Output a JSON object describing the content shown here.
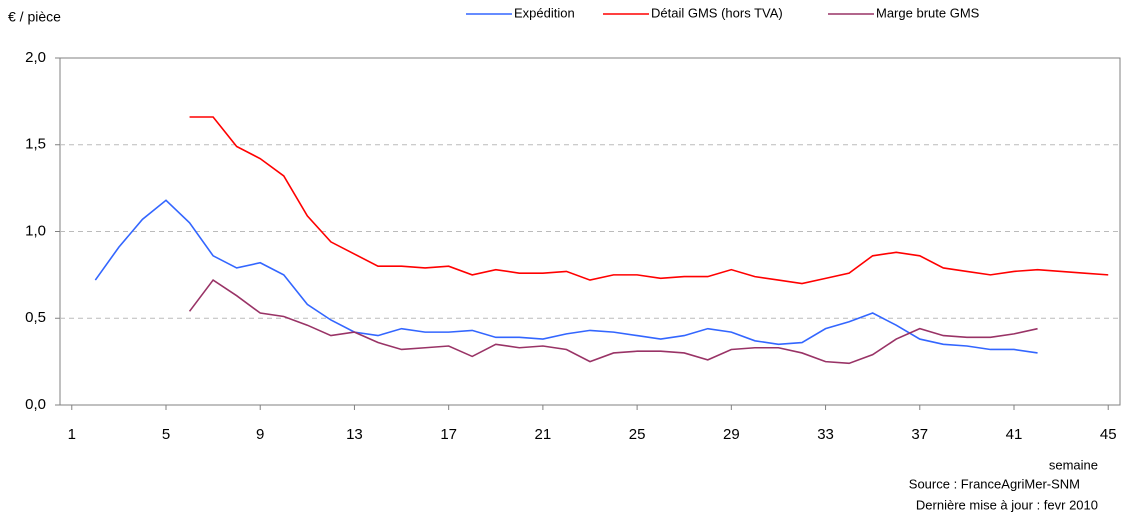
{
  "chart_data": {
    "type": "line",
    "y_label": "€ / pièce",
    "x_label": "semaine",
    "source": "Source : FranceAgriMer-SNM",
    "updated": "Dernière mise à jour : fevr 2010",
    "xlim": [
      0.5,
      45.5
    ],
    "xticks": [
      1,
      5,
      9,
      13,
      17,
      21,
      25,
      29,
      33,
      37,
      41,
      45
    ],
    "ylim": [
      0,
      2
    ],
    "yticks": [
      {
        "value": 0,
        "label": "0,0"
      },
      {
        "value": 0.5,
        "label": "0,5"
      },
      {
        "value": 1,
        "label": "1,0"
      },
      {
        "value": 1.5,
        "label": "1,5"
      },
      {
        "value": 2,
        "label": "2,0"
      }
    ],
    "grid": true,
    "series": [
      {
        "name": "Expédition",
        "color": "#3366ff",
        "x": [
          2,
          3,
          4,
          5,
          6,
          7,
          8,
          9,
          10,
          11,
          12,
          13,
          14,
          15,
          16,
          17,
          18,
          19,
          20,
          21,
          22,
          23,
          24,
          25,
          26,
          27,
          28,
          29,
          30,
          31,
          32,
          33,
          34,
          35,
          36,
          37,
          38,
          39,
          40,
          41,
          42
        ],
        "values": [
          0.72,
          0.91,
          1.07,
          1.18,
          1.05,
          0.86,
          0.79,
          0.82,
          0.75,
          0.58,
          0.49,
          0.42,
          0.4,
          0.44,
          0.42,
          0.42,
          0.43,
          0.39,
          0.39,
          0.38,
          0.41,
          0.43,
          0.42,
          0.4,
          0.38,
          0.4,
          0.44,
          0.42,
          0.37,
          0.35,
          0.36,
          0.44,
          0.48,
          0.53,
          0.46,
          0.38,
          0.35,
          0.34,
          0.32,
          0.32,
          0.3
        ]
      },
      {
        "name": "Détail GMS (hors TVA)",
        "color": "#ff0000",
        "x": [
          6,
          7,
          8,
          9,
          10,
          11,
          12,
          13,
          14,
          15,
          16,
          17,
          18,
          19,
          20,
          21,
          22,
          23,
          24,
          25,
          26,
          27,
          28,
          29,
          30,
          31,
          32,
          33,
          34,
          35,
          36,
          37,
          38,
          39,
          40,
          41,
          42,
          43,
          44,
          45
        ],
        "values": [
          1.66,
          1.66,
          1.49,
          1.42,
          1.32,
          1.09,
          0.94,
          0.87,
          0.8,
          0.8,
          0.79,
          0.8,
          0.75,
          0.78,
          0.76,
          0.76,
          0.77,
          0.72,
          0.75,
          0.75,
          0.73,
          0.74,
          0.74,
          0.78,
          0.74,
          0.72,
          0.7,
          0.73,
          0.76,
          0.86,
          0.88,
          0.86,
          0.79,
          0.77,
          0.75,
          0.77,
          0.78,
          0.77,
          0.76,
          0.75
        ]
      },
      {
        "name": "Marge brute GMS",
        "color": "#993366",
        "x": [
          6,
          7,
          8,
          9,
          10,
          11,
          12,
          13,
          14,
          15,
          16,
          17,
          18,
          19,
          20,
          21,
          22,
          23,
          24,
          25,
          26,
          27,
          28,
          29,
          30,
          31,
          32,
          33,
          34,
          35,
          36,
          37,
          38,
          39,
          40,
          41,
          42
        ],
        "values": [
          0.54,
          0.72,
          0.63,
          0.53,
          0.51,
          0.46,
          0.4,
          0.42,
          0.36,
          0.32,
          0.33,
          0.34,
          0.28,
          0.35,
          0.33,
          0.34,
          0.32,
          0.25,
          0.3,
          0.31,
          0.31,
          0.3,
          0.26,
          0.32,
          0.33,
          0.33,
          0.3,
          0.25,
          0.24,
          0.29,
          0.38,
          0.44,
          0.4,
          0.39,
          0.39,
          0.41,
          0.44
        ]
      }
    ]
  }
}
